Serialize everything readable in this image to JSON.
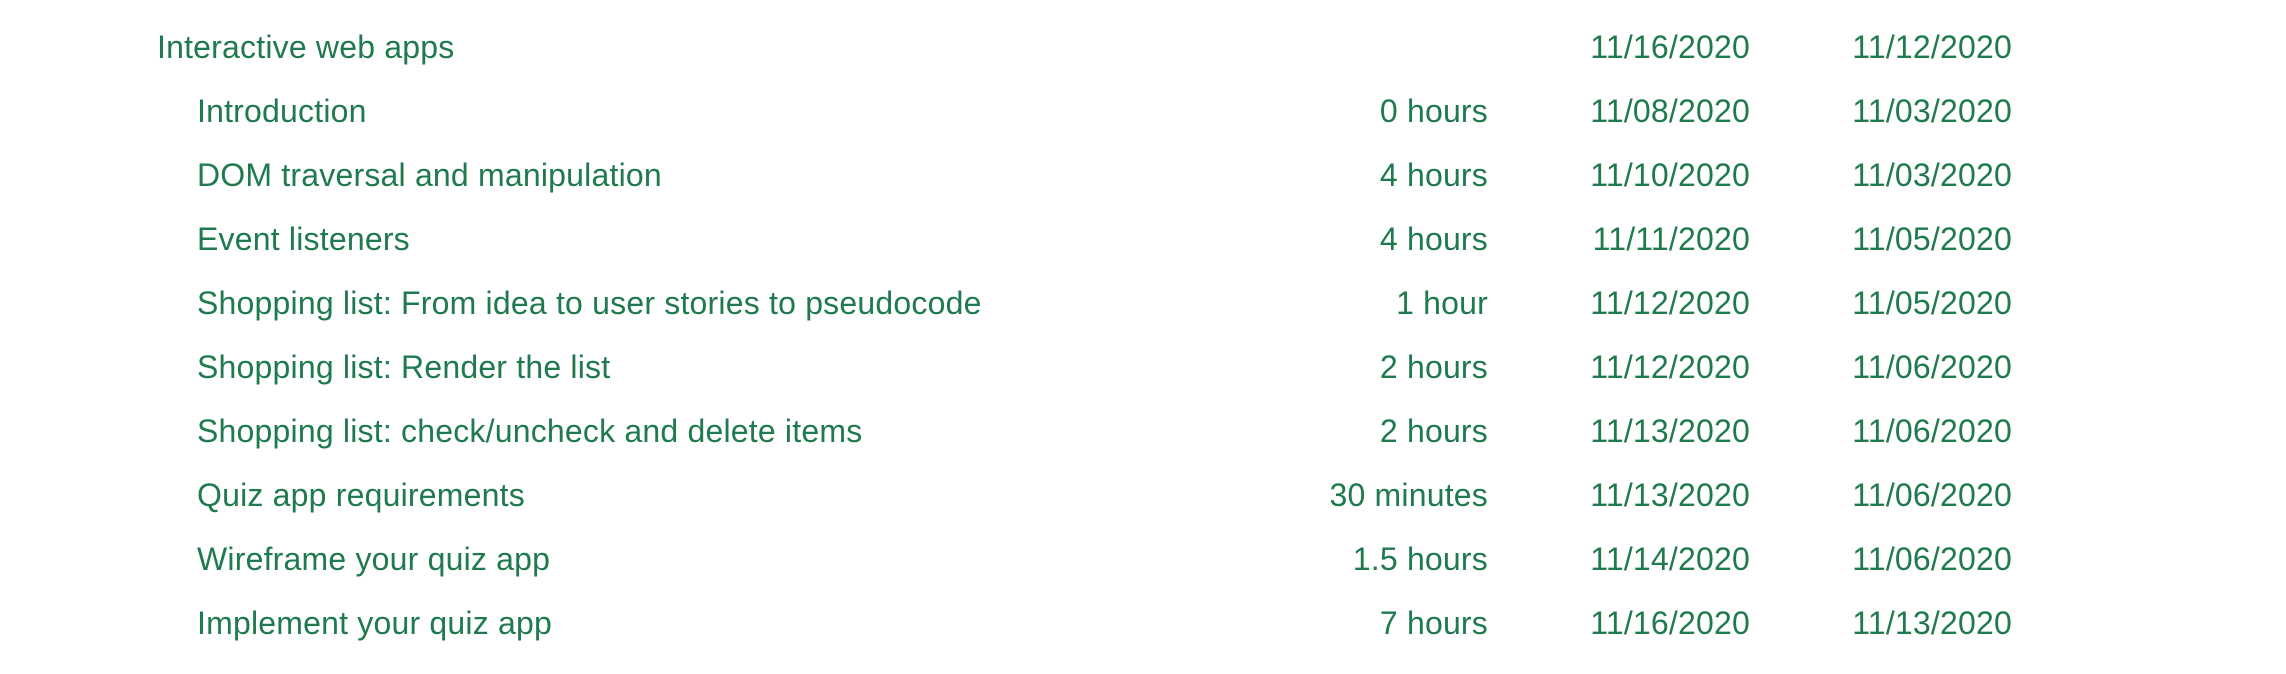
{
  "module": {
    "title": "Interactive web apps",
    "due": "11/16/2020",
    "start": "11/12/2020"
  },
  "lessons": [
    {
      "title": "Introduction",
      "duration": "0 hours",
      "due": "11/08/2020",
      "start": "11/03/2020"
    },
    {
      "title": "DOM traversal and manipulation",
      "duration": "4 hours",
      "due": "11/10/2020",
      "start": "11/03/2020"
    },
    {
      "title": "Event listeners",
      "duration": "4 hours",
      "due": "11/11/2020",
      "start": "11/05/2020"
    },
    {
      "title": "Shopping list: From idea to user stories to pseudocode",
      "duration": "1 hour",
      "due": "11/12/2020",
      "start": "11/05/2020"
    },
    {
      "title": "Shopping list: Render the list",
      "duration": "2 hours",
      "due": "11/12/2020",
      "start": "11/06/2020"
    },
    {
      "title": "Shopping list: check/uncheck and delete items",
      "duration": "2 hours",
      "due": "11/13/2020",
      "start": "11/06/2020"
    },
    {
      "title": "Quiz app requirements",
      "duration": "30 minutes",
      "due": "11/13/2020",
      "start": "11/06/2020"
    },
    {
      "title": "Wireframe your quiz app",
      "duration": "1.5 hours",
      "due": "11/14/2020",
      "start": "11/06/2020"
    },
    {
      "title": "Implement your quiz app",
      "duration": "7 hours",
      "due": "11/16/2020",
      "start": "11/13/2020"
    }
  ],
  "colors": {
    "text": "#1f7a4d",
    "background": "#ffffff"
  }
}
